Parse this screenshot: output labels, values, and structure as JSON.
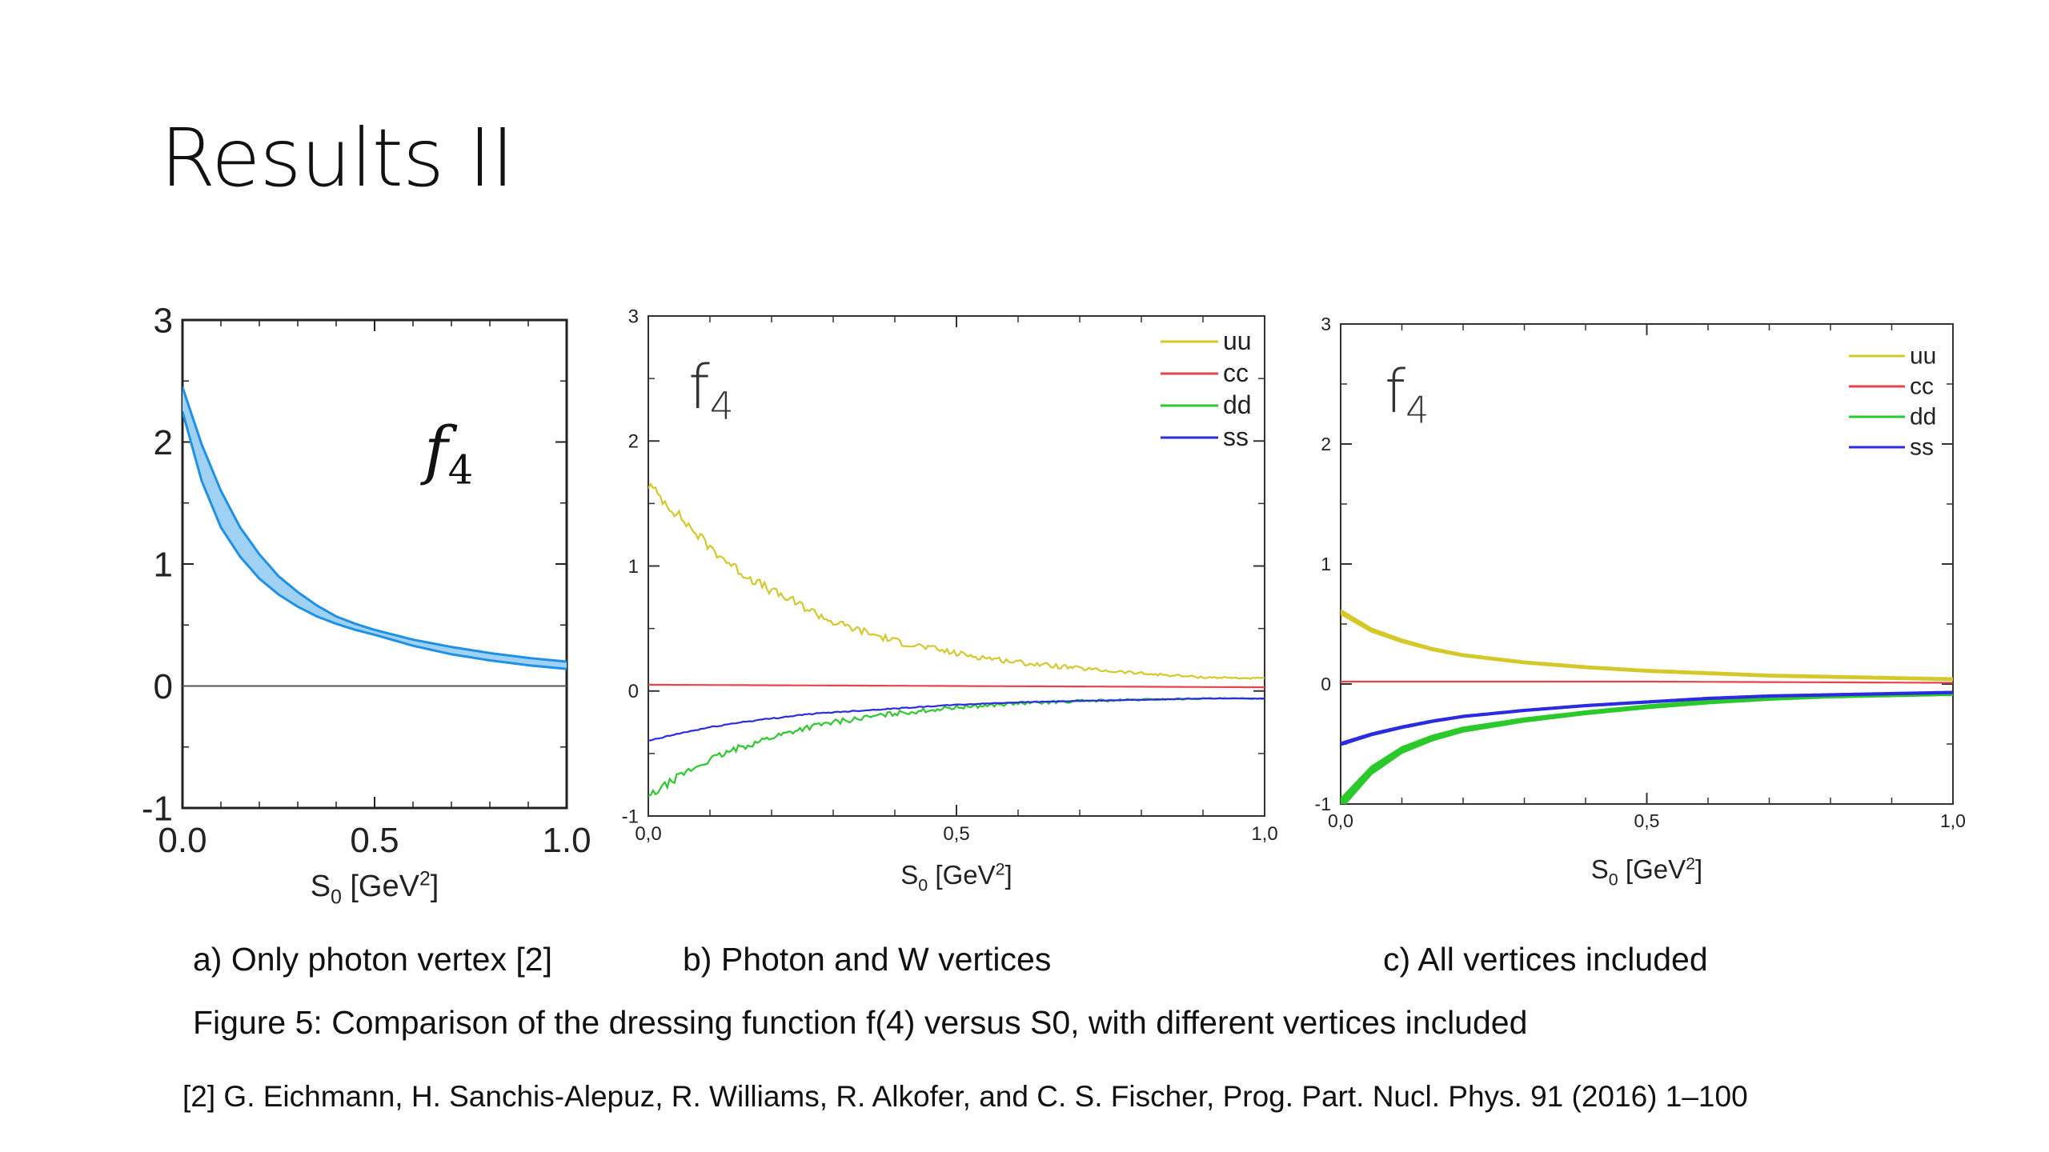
{
  "slide": {
    "title": "Results II",
    "captions": {
      "a": "a) Only photon vertex [2]",
      "b": "b) Photon and W vertices",
      "c": "c) All vertices included"
    },
    "figure_caption": "Figure 5: Comparison of the dressing function f(4) versus S0, with different vertices included",
    "reference": "[2] G. Eichmann, H. Sanchis-Alepuz, R. Williams, R. Alkofer, and C. S. Fischer, Prog. Part. Nucl. Phys. 91 (2016) 1–100"
  },
  "chart_data": [
    {
      "type": "area",
      "title": "",
      "annotation": "f4",
      "xlabel": "S0 [GeV2]",
      "ylabel": "",
      "xlim": [
        0,
        1
      ],
      "ylim": [
        -1,
        3
      ],
      "xticks": [
        "0.0",
        "0.5",
        "1.0"
      ],
      "yticks": [
        "-1",
        "0",
        "1",
        "2",
        "3"
      ],
      "zero_line": true,
      "legend": "none",
      "colors": {
        "band": "#1e90e6",
        "fill": "#9fd1f5"
      },
      "series": [
        {
          "x": [
            0,
            0.05,
            0.1,
            0.15,
            0.2,
            0.25,
            0.3,
            0.35,
            0.4,
            0.45,
            0.5,
            0.6,
            0.7,
            0.8,
            0.9,
            1.0
          ],
          "upper": [
            2.45,
            1.98,
            1.6,
            1.3,
            1.08,
            0.9,
            0.77,
            0.66,
            0.57,
            0.51,
            0.46,
            0.38,
            0.32,
            0.27,
            0.23,
            0.2
          ],
          "lower": [
            2.25,
            1.68,
            1.3,
            1.06,
            0.88,
            0.75,
            0.65,
            0.57,
            0.51,
            0.46,
            0.42,
            0.33,
            0.26,
            0.21,
            0.17,
            0.14
          ]
        }
      ]
    },
    {
      "type": "line",
      "title": "",
      "annotation": "f4",
      "xlabel": "S0 [GeV2]",
      "ylabel": "",
      "xlim": [
        0,
        1
      ],
      "ylim": [
        -1,
        3
      ],
      "xticks": [
        "0,0",
        "0,5",
        "1,0"
      ],
      "yticks": [
        "-1",
        "0",
        "1",
        "2",
        "3"
      ],
      "legend": "top-right",
      "series": [
        {
          "name": "uu",
          "color": "#d4c82a",
          "noise": 0.045,
          "x": [
            0,
            0.05,
            0.1,
            0.15,
            0.2,
            0.25,
            0.3,
            0.4,
            0.5,
            0.6,
            0.7,
            0.8,
            0.9,
            1.0
          ],
          "values": [
            1.65,
            1.4,
            1.15,
            0.95,
            0.8,
            0.68,
            0.55,
            0.4,
            0.3,
            0.23,
            0.18,
            0.14,
            0.11,
            0.1
          ]
        },
        {
          "name": "cc",
          "color": "#e8424d",
          "noise": 0,
          "x": [
            0,
            0.5,
            1.0
          ],
          "values": [
            0.05,
            0.04,
            0.03
          ]
        },
        {
          "name": "dd",
          "color": "#2bc92b",
          "noise": 0.03,
          "x": [
            0,
            0.05,
            0.1,
            0.15,
            0.2,
            0.25,
            0.3,
            0.4,
            0.5,
            0.6,
            0.7,
            0.8,
            0.9,
            1.0
          ],
          "values": [
            -0.85,
            -0.68,
            -0.55,
            -0.45,
            -0.37,
            -0.3,
            -0.25,
            -0.18,
            -0.13,
            -0.1,
            -0.08,
            -0.07,
            -0.06,
            -0.06
          ]
        },
        {
          "name": "ss",
          "color": "#2b2be0",
          "noise": 0.006,
          "x": [
            0,
            0.05,
            0.1,
            0.15,
            0.2,
            0.25,
            0.3,
            0.4,
            0.5,
            0.6,
            0.7,
            0.8,
            0.9,
            1.0
          ],
          "values": [
            -0.4,
            -0.34,
            -0.29,
            -0.25,
            -0.22,
            -0.19,
            -0.17,
            -0.14,
            -0.11,
            -0.09,
            -0.08,
            -0.07,
            -0.06,
            -0.06
          ]
        }
      ]
    },
    {
      "type": "line",
      "title": "",
      "annotation": "f4",
      "xlabel": "S0 [GeV2]",
      "ylabel": "",
      "xlim": [
        0,
        1
      ],
      "ylim": [
        -1,
        3
      ],
      "xticks": [
        "0,0",
        "0,5",
        "1,0"
      ],
      "yticks": [
        "-1",
        "0",
        "1",
        "2",
        "3"
      ],
      "legend": "top-right",
      "series": [
        {
          "name": "uu",
          "color": "#d4c82a",
          "band": 0.05,
          "x": [
            0,
            0.05,
            0.1,
            0.15,
            0.2,
            0.3,
            0.4,
            0.5,
            0.6,
            0.7,
            0.8,
            0.9,
            1.0
          ],
          "values": [
            0.6,
            0.45,
            0.36,
            0.29,
            0.24,
            0.18,
            0.14,
            0.11,
            0.09,
            0.07,
            0.06,
            0.05,
            0.04
          ]
        },
        {
          "name": "cc",
          "color": "#e8424d",
          "band": 0,
          "x": [
            0,
            0.5,
            1.0
          ],
          "values": [
            0.02,
            0.02,
            0.01
          ]
        },
        {
          "name": "dd",
          "color": "#2bc92b",
          "band": 0.08,
          "x": [
            0,
            0.05,
            0.1,
            0.15,
            0.2,
            0.3,
            0.4,
            0.5,
            0.6,
            0.7,
            0.8,
            0.9,
            1.0
          ],
          "values": [
            -1.0,
            -0.72,
            -0.55,
            -0.45,
            -0.38,
            -0.3,
            -0.24,
            -0.19,
            -0.15,
            -0.12,
            -0.1,
            -0.09,
            -0.08
          ]
        },
        {
          "name": "ss",
          "color": "#2b2be0",
          "band": 0.03,
          "x": [
            0,
            0.05,
            0.1,
            0.15,
            0.2,
            0.3,
            0.4,
            0.5,
            0.6,
            0.7,
            0.8,
            0.9,
            1.0
          ],
          "values": [
            -0.5,
            -0.42,
            -0.36,
            -0.31,
            -0.27,
            -0.22,
            -0.18,
            -0.15,
            -0.12,
            -0.1,
            -0.09,
            -0.08,
            -0.07
          ]
        }
      ]
    }
  ]
}
